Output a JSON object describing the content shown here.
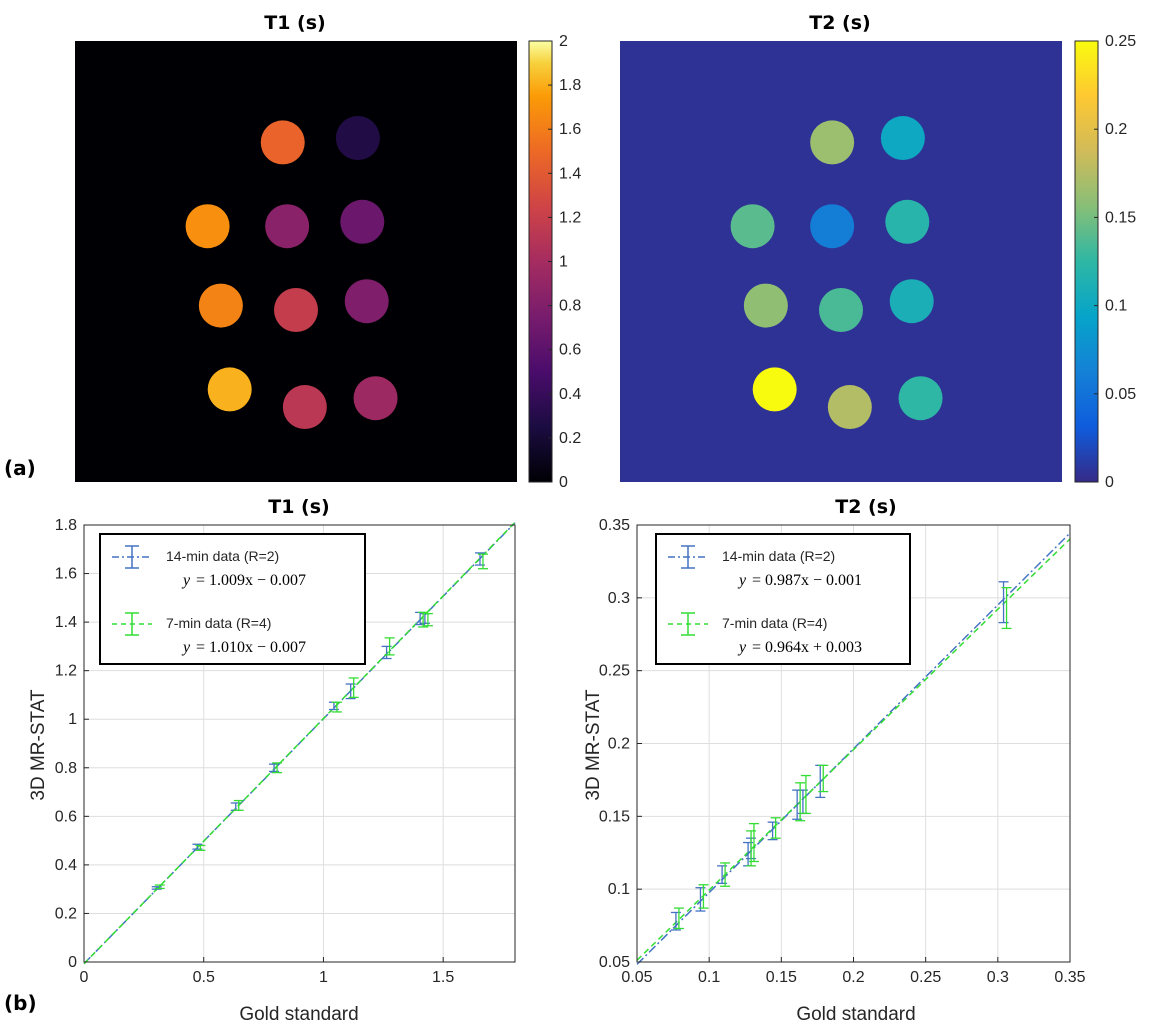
{
  "panels": {
    "a": "(a)",
    "b": "(b)"
  },
  "maps": [
    {
      "title": "T1 (s)",
      "background_value": 0,
      "colormap": "inferno",
      "colorbar_ticks": [
        "0",
        "0.2",
        "0.4",
        "0.6",
        "0.8",
        "1",
        "1.2",
        "1.4",
        "1.6",
        "1.8",
        "2"
      ],
      "colorbar_range": [
        0,
        2
      ],
      "spot_values": [
        1.3,
        0.25,
        1.5,
        0.75,
        0.6,
        1.45,
        1.05,
        0.7,
        1.65,
        1.0,
        0.85
      ]
    },
    {
      "title": "T2 (s)",
      "background_value": 0.005,
      "colormap": "parula",
      "colorbar_ticks": [
        "0",
        "0.05",
        "0.1",
        "0.15",
        "0.2",
        "0.25"
      ],
      "colorbar_range": [
        0,
        0.25
      ],
      "spot_values": [
        0.165,
        0.1,
        0.14,
        0.06,
        0.12,
        0.16,
        0.135,
        0.11,
        0.25,
        0.175,
        0.125
      ]
    }
  ],
  "chart_data": [
    {
      "type": "scatter",
      "title": "T1 (s)",
      "xlabel": "Gold standard",
      "ylabel": "3D MR-STAT",
      "xlim": [
        0,
        1.8
      ],
      "ylim": [
        0,
        1.8
      ],
      "xticks": [
        "0",
        "0.5",
        "1",
        "1.5"
      ],
      "xtick_values": [
        0,
        0.5,
        1,
        1.5
      ],
      "yticks": [
        "0",
        "0.2",
        "0.4",
        "0.6",
        "0.8",
        "1",
        "1.2",
        "1.4",
        "1.6",
        "1.8"
      ],
      "ytick_values": [
        0,
        0.2,
        0.4,
        0.6,
        0.8,
        1,
        1.2,
        1.4,
        1.6,
        1.8
      ],
      "grid": true,
      "series": [
        {
          "name": "14-min data (R=2)",
          "equation_lhs": "y",
          "equation_rhs": "= 1.009x − 0.007",
          "color": "#4472c4",
          "fit": {
            "slope": 1.009,
            "intercept": -0.007
          },
          "x": [
            0.31,
            0.48,
            0.64,
            0.8,
            1.05,
            1.12,
            1.27,
            1.41,
            1.43,
            1.66
          ],
          "y": [
            0.305,
            0.475,
            0.64,
            0.8,
            1.055,
            1.115,
            1.275,
            1.415,
            1.415,
            1.66
          ],
          "err": [
            0.005,
            0.01,
            0.015,
            0.015,
            0.015,
            0.03,
            0.025,
            0.025,
            0.02,
            0.025
          ]
        },
        {
          "name": "7-min data   (R=4)",
          "equation_lhs": "y",
          "equation_rhs": "= 1.010x − 0.007",
          "color": "#33dd33",
          "fit": {
            "slope": 1.01,
            "intercept": -0.007
          },
          "x": [
            0.31,
            0.48,
            0.64,
            0.8,
            1.05,
            1.12,
            1.27,
            1.41,
            1.43,
            1.66
          ],
          "y": [
            0.31,
            0.47,
            0.645,
            0.8,
            1.05,
            1.13,
            1.3,
            1.41,
            1.41,
            1.65
          ],
          "err": [
            0.007,
            0.01,
            0.02,
            0.02,
            0.02,
            0.04,
            0.035,
            0.03,
            0.025,
            0.03
          ]
        }
      ]
    },
    {
      "type": "scatter",
      "title": "T2 (s)",
      "xlabel": "Gold standard",
      "ylabel": "3D MR-STAT",
      "xlim": [
        0.05,
        0.35
      ],
      "ylim": [
        0.05,
        0.35
      ],
      "xticks": [
        "0.05",
        "0.1",
        "0.15",
        "0.2",
        "0.25",
        "0.3",
        "0.35"
      ],
      "xtick_values": [
        0.05,
        0.1,
        0.15,
        0.2,
        0.25,
        0.3,
        0.35
      ],
      "yticks": [
        "0.05",
        "0.1",
        "0.15",
        "0.2",
        "0.25",
        "0.3",
        "0.35"
      ],
      "ytick_values": [
        0.05,
        0.1,
        0.15,
        0.2,
        0.25,
        0.3,
        0.35
      ],
      "grid": true,
      "series": [
        {
          "name": "14-min data (R=2)",
          "equation_lhs": "y",
          "equation_rhs": "= 0.987x − 0.001",
          "color": "#4472c4",
          "fit": {
            "slope": 0.987,
            "intercept": -0.001
          },
          "x": [
            0.078,
            0.095,
            0.11,
            0.128,
            0.13,
            0.145,
            0.162,
            0.166,
            0.178,
            0.305
          ],
          "y": [
            0.078,
            0.093,
            0.11,
            0.124,
            0.128,
            0.14,
            0.158,
            0.16,
            0.174,
            0.297
          ],
          "err": [
            0.006,
            0.008,
            0.006,
            0.008,
            0.007,
            0.006,
            0.01,
            0.008,
            0.011,
            0.014
          ]
        },
        {
          "name": "7-min data   (R=4)",
          "equation_lhs": "y",
          "equation_rhs": "= 0.964x + 0.003",
          "color": "#33dd33",
          "fit": {
            "slope": 0.964,
            "intercept": 0.003
          },
          "x": [
            0.078,
            0.095,
            0.11,
            0.128,
            0.13,
            0.145,
            0.162,
            0.166,
            0.178,
            0.305
          ],
          "y": [
            0.08,
            0.095,
            0.11,
            0.128,
            0.132,
            0.142,
            0.16,
            0.165,
            0.176,
            0.293
          ],
          "err": [
            0.007,
            0.008,
            0.008,
            0.012,
            0.013,
            0.007,
            0.013,
            0.013,
            0.009,
            0.014
          ]
        }
      ]
    }
  ]
}
